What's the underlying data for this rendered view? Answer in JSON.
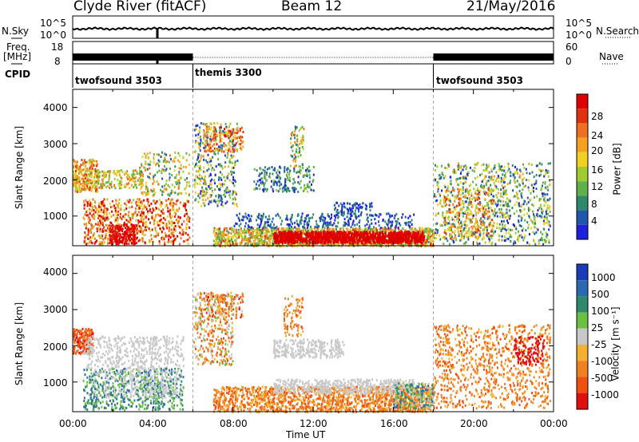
{
  "header": {
    "station": "Clyde River (fitACF)",
    "beam": "Beam 12",
    "date": "21/May/2016"
  },
  "top_panel": {
    "nsky_label": "N.Sky",
    "nsearch_label": "N.Search",
    "left_ticks": [
      "10^5",
      "10^0"
    ],
    "right_ticks": [
      "10^5",
      "10^0"
    ],
    "freq_label_1": "Freq.",
    "freq_label_2": "[MHz]",
    "freq_ticks": [
      "18",
      "8"
    ],
    "nave_label": "Nave",
    "nave_ticks": [
      "60",
      "0"
    ],
    "cpid_label": "CPID",
    "cpid_segments": [
      {
        "name": "twofsound 3503",
        "start_hour": 0,
        "end_hour": 6
      },
      {
        "name": "themis 3300",
        "start_hour": 6,
        "end_hour": 18
      },
      {
        "name": "twofsound 3503",
        "start_hour": 18,
        "end_hour": 24
      }
    ]
  },
  "chart_data": [
    {
      "type": "heatmap",
      "panel": "power",
      "ylabel": "Slant Range [km]",
      "ylim": [
        180,
        4500
      ],
      "yticks": [
        "1000",
        "2000",
        "3000",
        "4000"
      ],
      "xlim": [
        "00:00",
        "24:00"
      ],
      "colorbar_label": "Power [dB]",
      "colorbar_ticks": [
        "4",
        "8",
        "12",
        "16",
        "20",
        "24",
        "28"
      ],
      "colorscale": [
        "#1f1fe0",
        "#2055b0",
        "#2e8a6a",
        "#5fb24a",
        "#a0cc30",
        "#f0d020",
        "#f5a020",
        "#f07020",
        "#e03010",
        "#e00000"
      ],
      "mode_boundaries_hours": [
        6,
        18
      ]
    },
    {
      "type": "heatmap",
      "panel": "velocity",
      "ylabel": "Slant Range [km]",
      "ylim": [
        180,
        4500
      ],
      "yticks": [
        "1000",
        "2000",
        "3000",
        "4000"
      ],
      "xlabel": "Time UT",
      "xticks": [
        "00:00",
        "04:00",
        "08:00",
        "12:00",
        "16:00",
        "20:00",
        "00:00"
      ],
      "xlim": [
        "00:00",
        "24:00"
      ],
      "colorbar_label": "Velocity [m s⁻¹]",
      "colorbar_ticks": [
        "1000",
        "500",
        "100",
        "25",
        "-25",
        "-100",
        "-500",
        "-1000"
      ],
      "colorscale": [
        "#1a3cb8",
        "#2a6ab0",
        "#2e8a6a",
        "#6cc040",
        "#c8c8c8",
        "#f5b030",
        "#f08020",
        "#f05010",
        "#e01010"
      ],
      "mode_boundaries_hours": [
        6,
        18
      ]
    }
  ]
}
